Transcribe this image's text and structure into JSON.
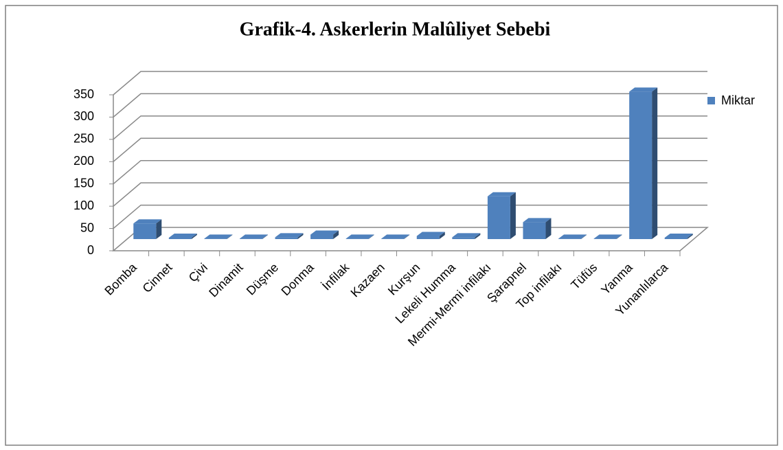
{
  "chart_data": {
    "type": "bar3d",
    "title": "Grafik-4. Askerlerin Malûliyet Sebebi",
    "categories": [
      "Bomba",
      "Cinnet",
      "Çivi",
      "Dinamit",
      "Düşme",
      "Donma",
      "İnfilak",
      "Kazaen",
      "Kurşun",
      "Lekeli Humma",
      "Mermi-Mermi infilakı",
      "Şarapnel",
      "Top infilakı",
      "Tüfüs",
      "Yanma",
      "Yunanlılarca"
    ],
    "series": [
      {
        "name": "Miktar",
        "color": "#4f81bd",
        "values": [
          35,
          3,
          1,
          1,
          4,
          10,
          1,
          1,
          7,
          4,
          96,
          38,
          1,
          1,
          331,
          3
        ]
      }
    ],
    "ylim": [
      0,
      350
    ],
    "yticks": [
      0,
      50,
      100,
      150,
      200,
      250,
      300,
      350
    ],
    "grid": true,
    "legend": "right"
  }
}
